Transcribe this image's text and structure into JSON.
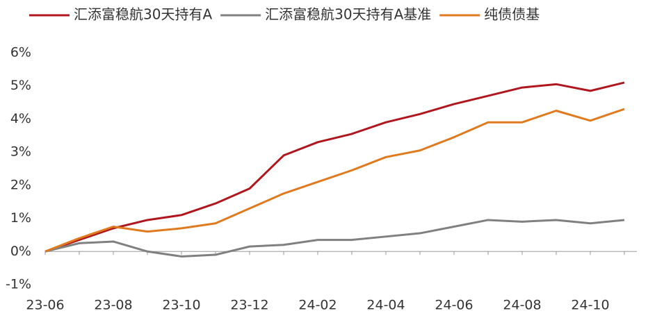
{
  "chart_data": {
    "type": "line",
    "categories": [
      "23-06",
      null,
      "23-08",
      null,
      "23-10",
      null,
      "23-12",
      null,
      "24-02",
      null,
      "24-04",
      null,
      "24-06",
      null,
      "24-08",
      null,
      "24-10",
      null
    ],
    "series": [
      {
        "name": "汇添富稳航30天持有A",
        "color": "#b0161e",
        "values": [
          0,
          0.35,
          0.7,
          0.95,
          1.1,
          1.45,
          1.9,
          2.9,
          3.3,
          3.55,
          3.9,
          4.15,
          4.45,
          4.7,
          4.95,
          5.05,
          4.85,
          5.1
        ]
      },
      {
        "name": "汇添富稳航30天持有A基准",
        "color": "#808080",
        "values": [
          0,
          0.25,
          0.3,
          0,
          -0.15,
          -0.1,
          0.15,
          0.2,
          0.35,
          0.35,
          0.45,
          0.55,
          0.75,
          0.95,
          0.9,
          0.95,
          0.85,
          0.95
        ]
      },
      {
        "name": "纯债债基",
        "color": "#e07a1f",
        "values": [
          0,
          0.4,
          0.75,
          0.6,
          0.7,
          0.85,
          1.3,
          1.75,
          2.1,
          2.45,
          2.85,
          3.05,
          3.45,
          3.9,
          3.9,
          4.25,
          3.95,
          4.3
        ]
      }
    ],
    "ylim": [
      -1,
      6
    ],
    "yticks": [
      {
        "value": -1,
        "label": "-1%"
      },
      {
        "value": 0,
        "label": "0%"
      },
      {
        "value": 1,
        "label": "1%"
      },
      {
        "value": 2,
        "label": "2%"
      },
      {
        "value": 3,
        "label": "3%"
      },
      {
        "value": 4,
        "label": "4%"
      },
      {
        "value": 5,
        "label": "5%"
      },
      {
        "value": 6,
        "label": "6%"
      }
    ],
    "grid": false,
    "legend": "top"
  }
}
